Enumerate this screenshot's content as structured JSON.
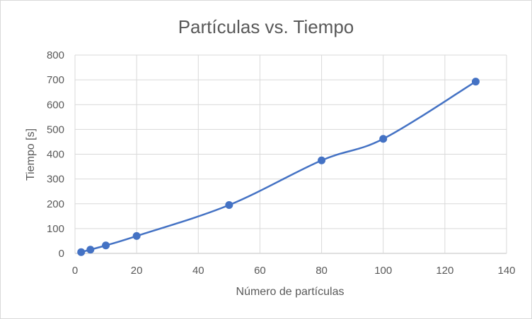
{
  "chart_data": {
    "type": "scatter",
    "title": "Partículas vs. Tiempo",
    "xlabel": "Número de partículas",
    "ylabel": "Tiempo [s]",
    "xlim": [
      0,
      140
    ],
    "ylim": [
      0,
      800
    ],
    "xticks": [
      "0",
      "20",
      "40",
      "60",
      "80",
      "100",
      "120",
      "140"
    ],
    "yticks": [
      "0",
      "100",
      "200",
      "300",
      "400",
      "500",
      "600",
      "700",
      "800"
    ],
    "grid": true,
    "smooth_line": true,
    "series": [
      {
        "x": [
          2,
          5,
          10,
          20,
          50,
          80,
          100,
          130
        ],
        "y": [
          5,
          15,
          32,
          70,
          195,
          375,
          462,
          693
        ],
        "color": "#4472c4"
      }
    ]
  }
}
